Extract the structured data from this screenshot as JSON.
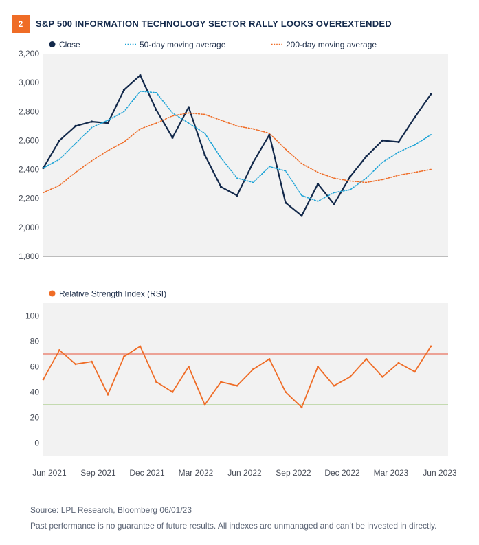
{
  "badge": "2",
  "title": "S&P 500 INFORMATION TECHNOLOGY SECTOR RALLY LOOKS OVEREXTENDED",
  "source": "Source: LPL Research, Bloomberg  06/01/23",
  "disclaimer": "Past performance is no guarantee of future results. All indexes are unmanaged and can’t be invested in directly.",
  "colors": {
    "close": "#13294b",
    "ma50": "#1ca3d6",
    "ma200": "#ef6c26",
    "rsi": "#ef6c26",
    "overbought": "#e8735f",
    "oversold": "#a9cc88",
    "panel_bg": "#f2f2f2",
    "badge": "#ef6c26"
  },
  "x_labels": [
    "Jun 2021",
    "Sep 2021",
    "Dec 2021",
    "Mar 2022",
    "Jun 2022",
    "Sep 2022",
    "Dec 2022",
    "Mar 2023",
    "Jun 2023"
  ],
  "chart_data": [
    {
      "type": "line",
      "ylim": [
        1800,
        3200
      ],
      "yticks": [
        "1,800",
        "2,000",
        "2,200",
        "2,400",
        "2,600",
        "2,800",
        "3,000",
        "3,200"
      ],
      "x": [
        "2021-06",
        "2021-07",
        "2021-08",
        "2021-09",
        "2021-10",
        "2021-11",
        "2021-12",
        "2022-01",
        "2022-02",
        "2022-03",
        "2022-04",
        "2022-05",
        "2022-06",
        "2022-07",
        "2022-08",
        "2022-09",
        "2022-10",
        "2022-11",
        "2022-12",
        "2023-01",
        "2023-02",
        "2023-03",
        "2023-04",
        "2023-05",
        "2023-06"
      ],
      "series": [
        {
          "name": "Close",
          "values": [
            2410,
            2600,
            2700,
            2730,
            2720,
            2950,
            3050,
            2810,
            2620,
            2830,
            2500,
            2280,
            2220,
            2450,
            2640,
            2170,
            2080,
            2300,
            2160,
            2350,
            2490,
            2600,
            2590,
            2760,
            2920
          ]
        },
        {
          "name": "50-day moving average",
          "values": [
            2410,
            2470,
            2580,
            2690,
            2740,
            2800,
            2940,
            2930,
            2790,
            2720,
            2650,
            2480,
            2340,
            2310,
            2420,
            2390,
            2220,
            2180,
            2240,
            2260,
            2340,
            2450,
            2520,
            2570,
            2640
          ]
        },
        {
          "name": "200-day moving average",
          "values": [
            2240,
            2290,
            2380,
            2460,
            2530,
            2590,
            2680,
            2720,
            2770,
            2790,
            2780,
            2740,
            2700,
            2680,
            2650,
            2540,
            2440,
            2380,
            2340,
            2320,
            2310,
            2330,
            2360,
            2380,
            2400
          ]
        }
      ]
    },
    {
      "type": "line",
      "ylim": [
        -10,
        110
      ],
      "yticks": [
        "0",
        "20",
        "40",
        "60",
        "80",
        "100"
      ],
      "x": [
        "2021-06",
        "2021-07",
        "2021-08",
        "2021-09",
        "2021-10",
        "2021-11",
        "2021-12",
        "2022-01",
        "2022-02",
        "2022-03",
        "2022-04",
        "2022-05",
        "2022-06",
        "2022-07",
        "2022-08",
        "2022-09",
        "2022-10",
        "2022-11",
        "2022-12",
        "2023-01",
        "2023-02",
        "2023-03",
        "2023-04",
        "2023-05",
        "2023-06"
      ],
      "reference_lines": [
        70,
        30
      ],
      "series": [
        {
          "name": "Relative Strength Index (RSI)",
          "values": [
            50,
            73,
            62,
            64,
            38,
            68,
            76,
            48,
            40,
            60,
            30,
            48,
            45,
            58,
            66,
            40,
            28,
            60,
            45,
            52,
            66,
            52,
            63,
            56,
            76
          ]
        }
      ]
    }
  ]
}
